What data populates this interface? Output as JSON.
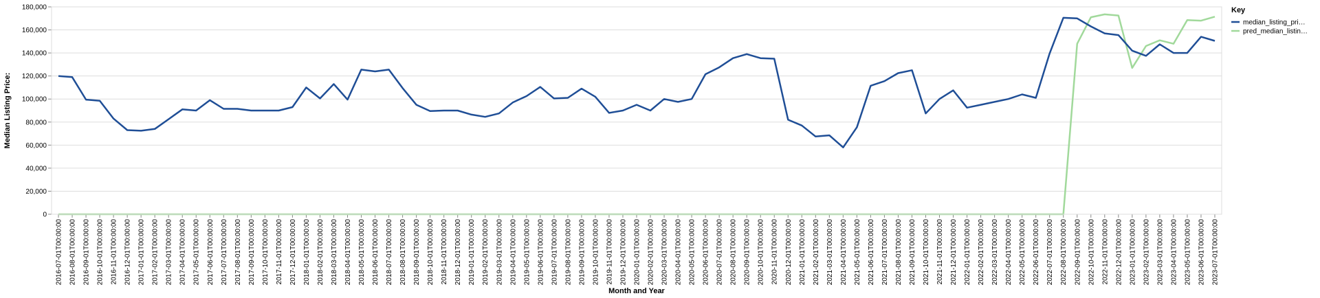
{
  "chart_data": {
    "type": "line",
    "xlabel": "Month and Year",
    "ylabel": "Median Listing Price:",
    "ylim": [
      0,
      180000
    ],
    "yticks": [
      "0",
      "20,000",
      "40,000",
      "60,000",
      "80,000",
      "100,000",
      "120,000",
      "140,000",
      "160,000",
      "180,000"
    ],
    "grid": true,
    "legend": {
      "title": "Key",
      "placement": "top-right",
      "entries": [
        "median_listing_pri…",
        "pred_median_listin…"
      ]
    },
    "categories": [
      "2016-07-01T00:00:00",
      "2016-08-01T00:00:00",
      "2016-09-01T00:00:00",
      "2016-10-01T00:00:00",
      "2016-11-01T00:00:00",
      "2016-12-01T00:00:00",
      "2017-01-01T00:00:00",
      "2017-02-01T00:00:00",
      "2017-03-01T00:00:00",
      "2017-04-01T00:00:00",
      "2017-05-01T00:00:00",
      "2017-06-01T00:00:00",
      "2017-07-01T00:00:00",
      "2017-08-01T00:00:00",
      "2017-09-01T00:00:00",
      "2017-10-01T00:00:00",
      "2017-11-01T00:00:00",
      "2017-12-01T00:00:00",
      "2018-01-01T00:00:00",
      "2018-02-01T00:00:00",
      "2018-03-01T00:00:00",
      "2018-04-01T00:00:00",
      "2018-05-01T00:00:00",
      "2018-06-01T00:00:00",
      "2018-07-01T00:00:00",
      "2018-08-01T00:00:00",
      "2018-09-01T00:00:00",
      "2018-10-01T00:00:00",
      "2018-11-01T00:00:00",
      "2018-12-01T00:00:00",
      "2019-01-01T00:00:00",
      "2019-02-01T00:00:00",
      "2019-03-01T00:00:00",
      "2019-04-01T00:00:00",
      "2019-05-01T00:00:00",
      "2019-06-01T00:00:00",
      "2019-07-01T00:00:00",
      "2019-08-01T00:00:00",
      "2019-09-01T00:00:00",
      "2019-10-01T00:00:00",
      "2019-11-01T00:00:00",
      "2019-12-01T00:00:00",
      "2020-01-01T00:00:00",
      "2020-02-01T00:00:00",
      "2020-03-01T00:00:00",
      "2020-04-01T00:00:00",
      "2020-05-01T00:00:00",
      "2020-06-01T00:00:00",
      "2020-07-01T00:00:00",
      "2020-08-01T00:00:00",
      "2020-09-01T00:00:00",
      "2020-10-01T00:00:00",
      "2020-11-01T00:00:00",
      "2020-12-01T00:00:00",
      "2021-01-01T00:00:00",
      "2021-02-01T00:00:00",
      "2021-03-01T00:00:00",
      "2021-04-01T00:00:00",
      "2021-05-01T00:00:00",
      "2021-06-01T00:00:00",
      "2021-07-01T00:00:00",
      "2021-08-01T00:00:00",
      "2021-09-01T00:00:00",
      "2021-10-01T00:00:00",
      "2021-11-01T00:00:00",
      "2021-12-01T00:00:00",
      "2022-01-01T00:00:00",
      "2022-02-01T00:00:00",
      "2022-03-01T00:00:00",
      "2022-04-01T00:00:00",
      "2022-05-01T00:00:00",
      "2022-06-01T00:00:00",
      "2022-07-01T00:00:00",
      "2022-08-01T00:00:00",
      "2022-09-01T00:00:00",
      "2022-10-01T00:00:00",
      "2022-11-01T00:00:00",
      "2022-12-01T00:00:00",
      "2023-01-01T00:00:00",
      "2023-02-01T00:00:00",
      "2023-03-01T00:00:00",
      "2023-04-01T00:00:00",
      "2023-05-01T00:00:00",
      "2023-06-01T00:00:00",
      "2023-07-01T00:00:00"
    ],
    "series": [
      {
        "name": "median_listing_pri…",
        "color": "#1f4e96",
        "values": [
          120000,
          119000,
          99500,
          98500,
          83000,
          73000,
          72500,
          74000,
          82500,
          91000,
          90000,
          99000,
          91500,
          91500,
          90000,
          90000,
          90000,
          93000,
          110000,
          100500,
          113000,
          99500,
          125500,
          124000,
          125500,
          109500,
          95000,
          89500,
          90000,
          90000,
          86500,
          84500,
          87500,
          97000,
          102500,
          110500,
          100500,
          101000,
          109000,
          102000,
          88000,
          90000,
          95000,
          90000,
          100000,
          97500,
          100000,
          121500,
          127500,
          135500,
          139000,
          135500,
          135000,
          82000,
          77000,
          67500,
          68500,
          58000,
          75500,
          111500,
          115500,
          122500,
          125000,
          87500,
          100000,
          107500,
          92500,
          95000,
          97500,
          100000,
          104000,
          101000,
          139500,
          170500,
          170000,
          163000,
          157000,
          155500,
          142000,
          137500,
          147500,
          140000,
          140000,
          154000,
          150500
        ]
      },
      {
        "name": "pred_median_listin…",
        "color": "#a1d99b",
        "values": [
          0,
          0,
          0,
          0,
          0,
          0,
          0,
          0,
          0,
          0,
          0,
          0,
          0,
          0,
          0,
          0,
          0,
          0,
          0,
          0,
          0,
          0,
          0,
          0,
          0,
          0,
          0,
          0,
          0,
          0,
          0,
          0,
          0,
          0,
          0,
          0,
          0,
          0,
          0,
          0,
          0,
          0,
          0,
          0,
          0,
          0,
          0,
          0,
          0,
          0,
          0,
          0,
          0,
          0,
          0,
          0,
          0,
          0,
          0,
          0,
          0,
          0,
          0,
          0,
          0,
          0,
          0,
          0,
          0,
          0,
          0,
          0,
          0,
          0,
          148000,
          171000,
          173500,
          172500,
          127000,
          146000,
          151000,
          148000,
          168500,
          168000,
          171500
        ]
      }
    ]
  }
}
